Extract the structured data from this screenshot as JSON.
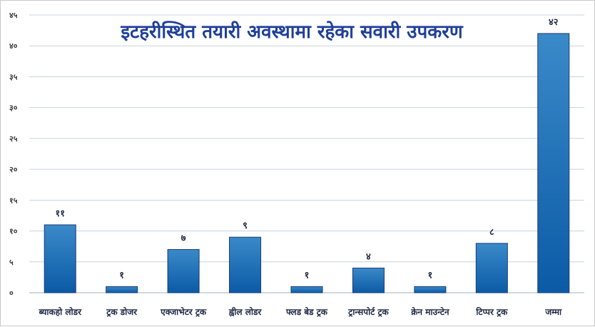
{
  "chart_data": {
    "type": "bar",
    "title": "इटहरीस्थित तयारी अवस्थामा रहेका सवारी उपकरण",
    "categories": [
      "ब्याकहो लोडर",
      "ट्रक डोजर",
      "एक्जाभेटर ट्रक",
      "ह्वील लोडर",
      "फ्लड बेड ट्रक",
      "ट्रान्सपोर्ट ट्रक",
      "क्रेन माउन्टेन",
      "टिप्पर ट्रक",
      "जम्मा"
    ],
    "values": [
      11,
      1,
      7,
      9,
      1,
      4,
      1,
      8,
      42
    ],
    "value_labels": [
      "११",
      "१",
      "७",
      "९",
      "१",
      "४",
      "१",
      "८",
      "४२"
    ],
    "ylim": [
      0,
      45
    ],
    "yticks": [
      0,
      5,
      10,
      15,
      20,
      25,
      30,
      35,
      40,
      45
    ],
    "ytick_labels": [
      "०",
      "५",
      "१०",
      "१५",
      "२०",
      "२५",
      "३०",
      "३५",
      "४०",
      "४५"
    ],
    "grid": true,
    "legend": "none",
    "colors": {
      "bar_top": "#3a8ac9",
      "bar_bottom": "#0b5aa6",
      "bar_edge": "#1a3c73",
      "title": "#1f3f9b",
      "grid": "#c7d3df"
    }
  }
}
